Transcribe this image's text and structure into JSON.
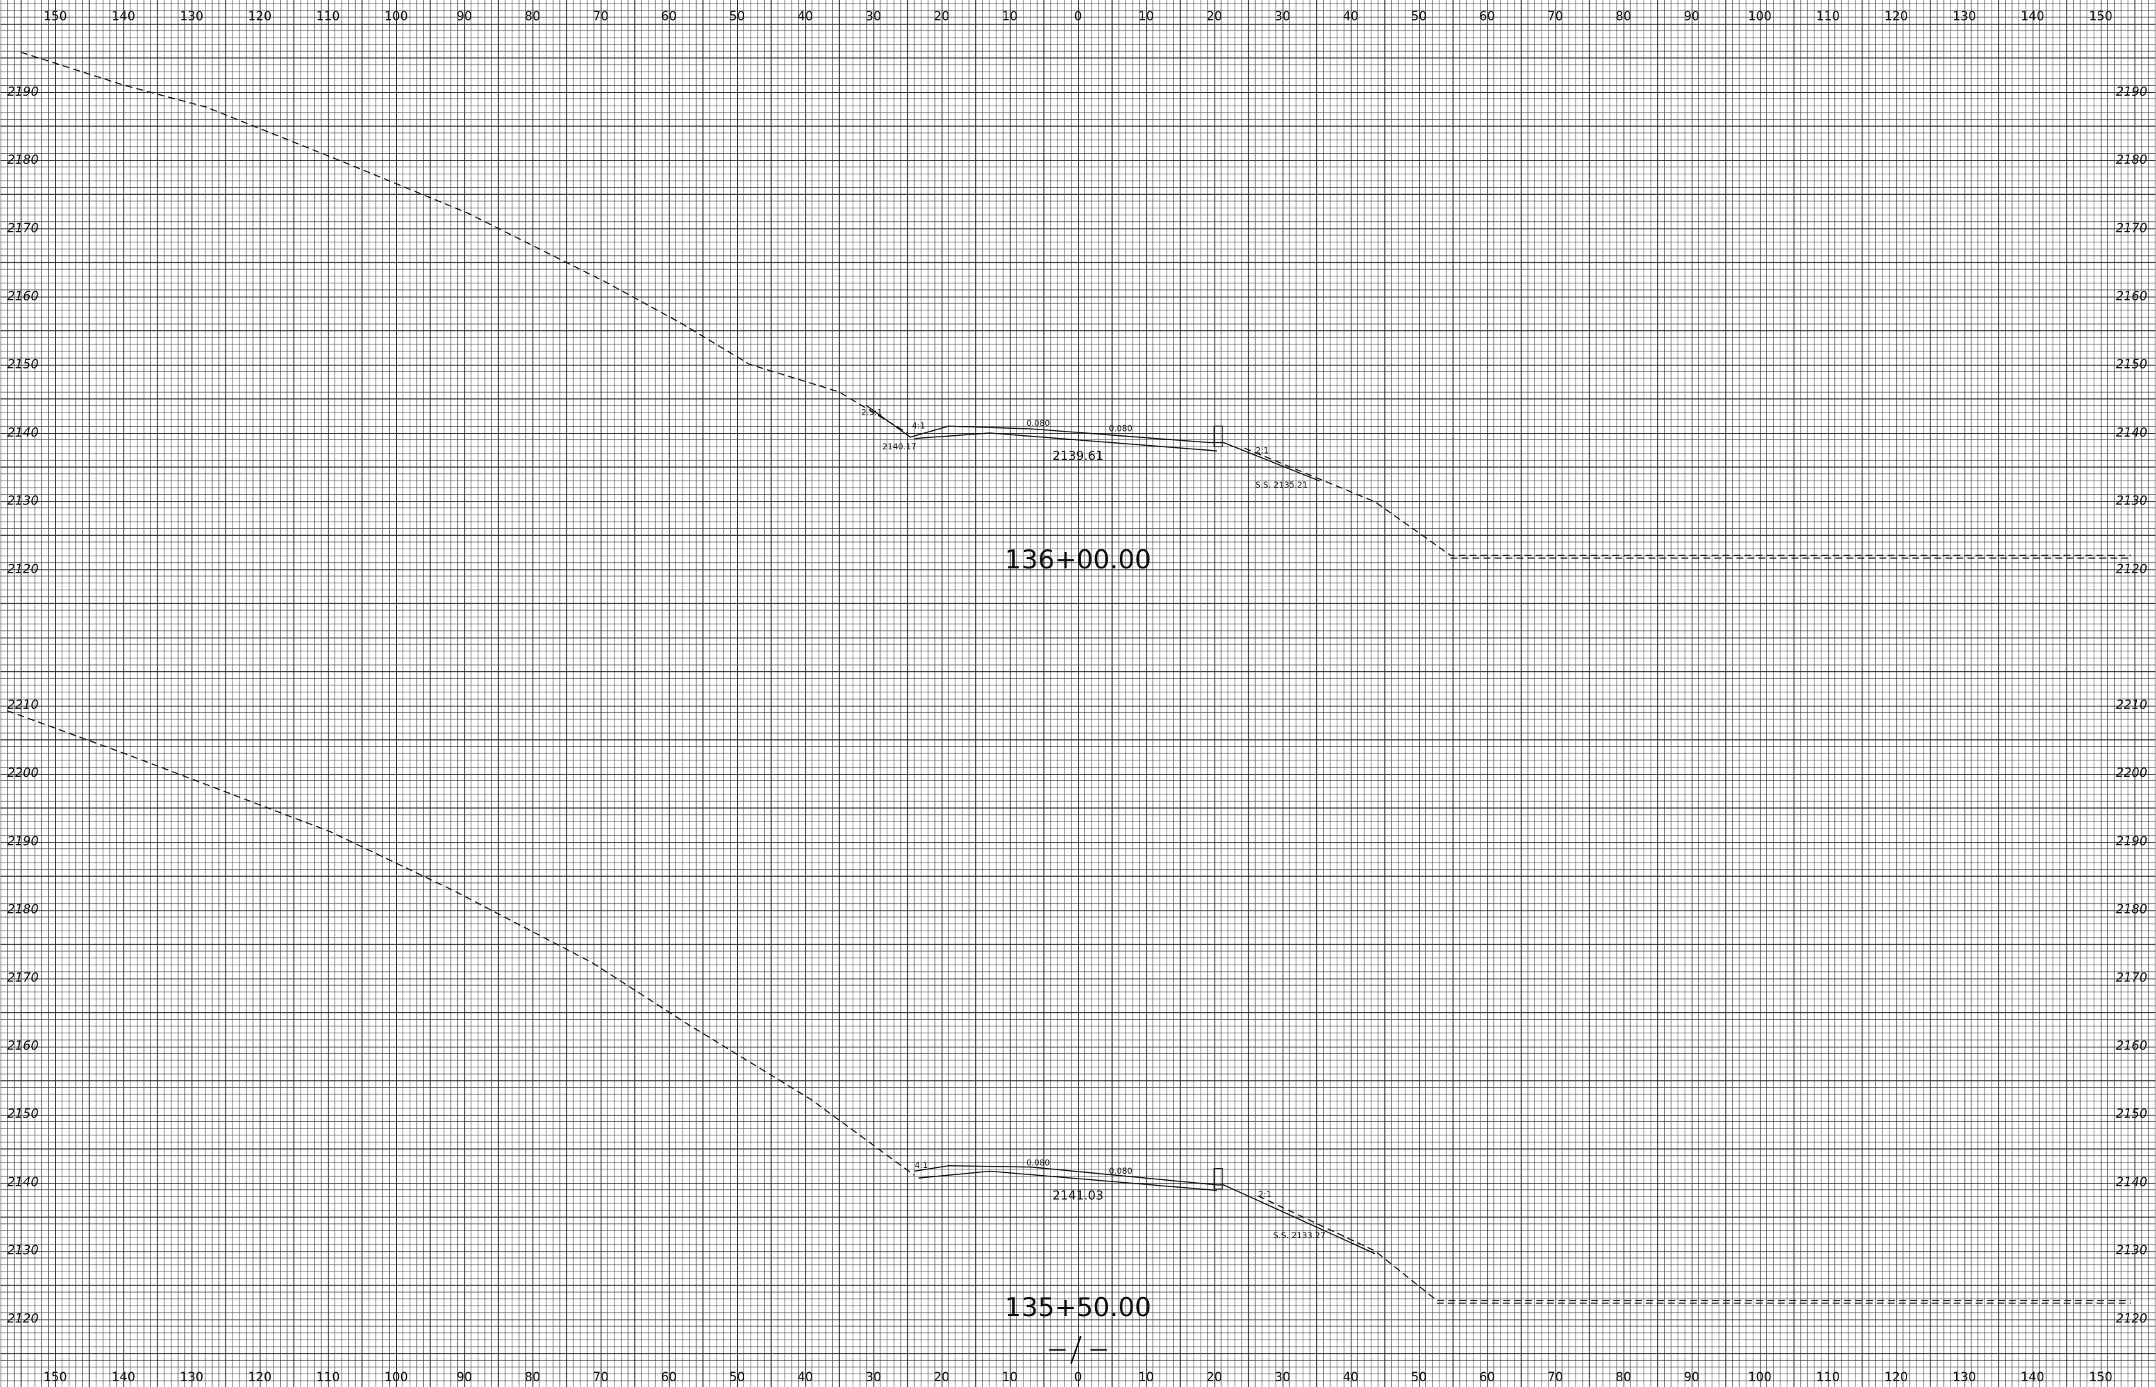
{
  "offset_labels_top": [
    150,
    140,
    130,
    120,
    110,
    100,
    90,
    80,
    70,
    60,
    50,
    40,
    30,
    20,
    10,
    0,
    10,
    20,
    30,
    40,
    50,
    60,
    70,
    80,
    90,
    100,
    110,
    120,
    130,
    140,
    150
  ],
  "offset_labels_bottom": [
    150,
    140,
    130,
    120,
    110,
    100,
    90,
    80,
    70,
    60,
    50,
    40,
    30,
    20,
    10,
    0,
    10,
    20,
    30,
    40,
    50,
    60,
    70,
    80,
    90,
    100,
    110,
    120,
    130,
    140,
    150
  ],
  "sections": [
    {
      "station": "136+00.00",
      "elevations_left": [
        2190,
        2180,
        2170,
        2160,
        2150,
        2140,
        2130,
        2120
      ],
      "elevations_right": [
        2190,
        2180,
        2170,
        2160,
        2150,
        2140,
        2130,
        2120
      ],
      "annotations": [
        "2.5:1",
        "4:1",
        "0.080",
        "0.080",
        "2140.17",
        "2139.61",
        "2:1",
        "S.S. 2135.21"
      ]
    },
    {
      "station": "135+50.00",
      "elevations_left": [
        2210,
        2200,
        2190,
        2180,
        2170,
        2160,
        2150,
        2140,
        2130,
        2120
      ],
      "elevations_right": [
        2210,
        2200,
        2190,
        2180,
        2170,
        2160,
        2150,
        2140,
        2130,
        2120
      ],
      "annotations": [
        "4:1",
        "0.080",
        "0.080",
        "2141.03",
        "2:1",
        "S.S. 2133.27"
      ]
    }
  ]
}
